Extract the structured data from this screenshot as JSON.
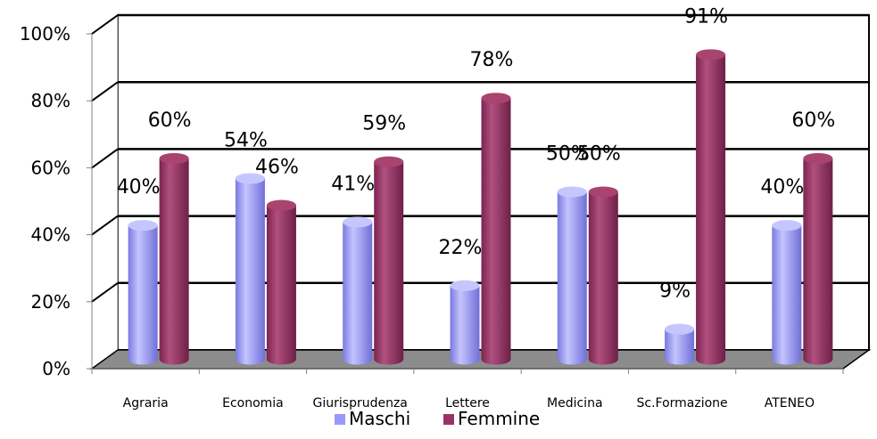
{
  "chart_data": {
    "type": "bar",
    "categories": [
      "Agraria",
      "Economia",
      "Giurisprudenza",
      "Lettere",
      "Medicina",
      "Sc.Formazione",
      "ATENEO"
    ],
    "series": [
      {
        "name": "Maschi",
        "values": [
          40,
          54,
          41,
          22,
          50,
          9,
          40
        ],
        "color": "#9999ff"
      },
      {
        "name": "Femmine",
        "values": [
          60,
          46,
          59,
          78,
          50,
          91,
          60
        ],
        "color": "#993366"
      }
    ],
    "value_labels": {
      "Maschi": [
        "40%",
        "54%",
        "41%",
        "22%",
        "50%",
        "9%",
        "40%"
      ],
      "Femmine": [
        "60%",
        "46%",
        "59%",
        "78%",
        "50%",
        "91%",
        "60%"
      ]
    },
    "ylim": [
      0,
      100
    ],
    "yticks": [
      "0%",
      "20%",
      "40%",
      "60%",
      "80%",
      "100%"
    ],
    "ytick_values": [
      0,
      20,
      40,
      60,
      80,
      100
    ],
    "grid": true,
    "legend_position": "bottom",
    "title": "",
    "xlabel": "",
    "ylabel": ""
  }
}
